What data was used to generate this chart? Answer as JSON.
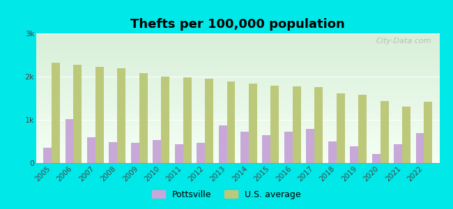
{
  "title": "Thefts per 100,000 population",
  "years": [
    2005,
    2006,
    2007,
    2008,
    2009,
    2010,
    2011,
    2012,
    2013,
    2014,
    2015,
    2016,
    2017,
    2018,
    2019,
    2020,
    2021,
    2022
  ],
  "pottsville": [
    350,
    1020,
    600,
    480,
    460,
    530,
    430,
    460,
    870,
    730,
    640,
    720,
    790,
    500,
    390,
    210,
    430,
    700
  ],
  "us_average": [
    2330,
    2280,
    2220,
    2200,
    2080,
    2000,
    1990,
    1950,
    1890,
    1840,
    1790,
    1780,
    1760,
    1620,
    1580,
    1430,
    1310,
    1420
  ],
  "pottsville_color": "#c8a8d8",
  "us_average_color": "#bcc87a",
  "background_color": "#00e8e8",
  "plot_bg_top": "#d8efd8",
  "plot_bg_bottom": "#f5fff5",
  "ylim": [
    0,
    3000
  ],
  "yticks": [
    0,
    1000,
    2000,
    3000
  ],
  "ytick_labels": [
    "0",
    "1k",
    "2k",
    "3k"
  ],
  "bar_width": 0.38,
  "watermark": "City-Data.com",
  "legend_pottsville": "Pottsville",
  "legend_us": "U.S. average",
  "title_fontsize": 13
}
